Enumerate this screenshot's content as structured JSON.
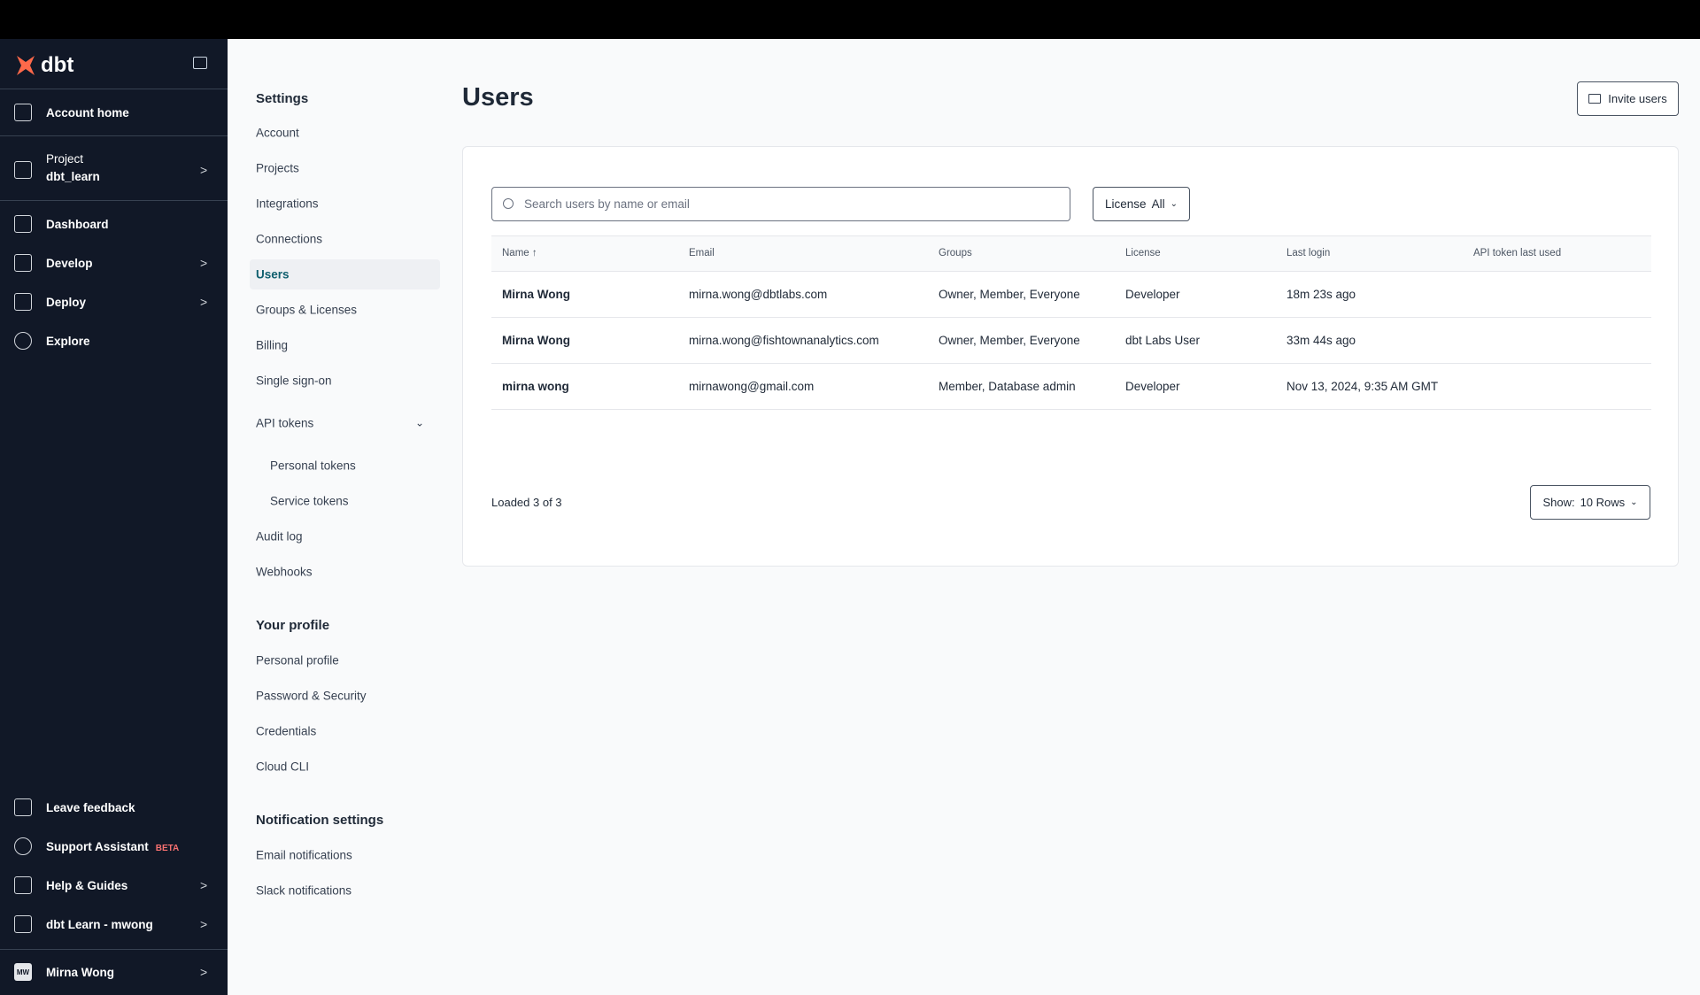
{
  "brand": {
    "name": "dbt",
    "color": "#ff694a"
  },
  "sidebar": {
    "items": [
      {
        "label": "Account home",
        "icon": "home-icon"
      },
      {
        "label": "Project",
        "sub": "dbt_learn",
        "icon": "layers-icon"
      },
      {
        "label": "Dashboard",
        "icon": "grid-icon"
      },
      {
        "label": "Develop",
        "icon": "code-icon"
      },
      {
        "label": "Deploy",
        "icon": "deploy-icon"
      },
      {
        "label": "Explore",
        "icon": "compass-icon"
      }
    ],
    "bottom": [
      {
        "label": "Leave feedback",
        "icon": "clipboard-icon"
      },
      {
        "label": "Support Assistant",
        "badge": "BETA",
        "icon": "headset-icon"
      },
      {
        "label": "Help & Guides",
        "icon": "book-icon"
      },
      {
        "label": "dbt Learn - mwong",
        "icon": "building-icon"
      },
      {
        "label": "Mirna Wong",
        "avatar": "MW"
      }
    ]
  },
  "settings": {
    "title": "Settings",
    "items": [
      "Account",
      "Projects",
      "Integrations",
      "Connections",
      "Users",
      "Groups & Licenses",
      "Billing",
      "Single sign-on"
    ],
    "api_tokens": "API tokens",
    "api_sub": [
      "Personal tokens",
      "Service tokens"
    ],
    "items2": [
      "Audit log",
      "Webhooks"
    ],
    "profile_title": "Your profile",
    "profile": [
      "Personal profile",
      "Password & Security",
      "Credentials",
      "Cloud CLI"
    ],
    "notif_title": "Notification settings",
    "notif": [
      "Email notifications",
      "Slack notifications"
    ]
  },
  "main": {
    "title": "Users",
    "invite": "Invite users",
    "search_placeholder": "Search users by name or email",
    "license_label": "License",
    "license_value": "All",
    "columns": [
      "Name",
      "Email",
      "Groups",
      "License",
      "Last login",
      "API token last used"
    ],
    "rows": [
      [
        "Mirna Wong",
        "mirna.wong@dbtlabs.com",
        "Owner, Member, Everyone",
        "Developer",
        "18m 23s ago",
        ""
      ],
      [
        "Mirna Wong",
        "mirna.wong@fishtownanalytics.com",
        "Owner, Member, Everyone",
        "dbt Labs User",
        "33m 44s ago",
        ""
      ],
      [
        "mirna wong",
        "mirnawong@gmail.com",
        "Member, Database admin",
        "Developer",
        "Nov 13, 2024, 9:35 AM GMT",
        ""
      ]
    ],
    "loaded": "Loaded 3 of 3",
    "show_label": "Show:",
    "show_value": "10 Rows"
  }
}
